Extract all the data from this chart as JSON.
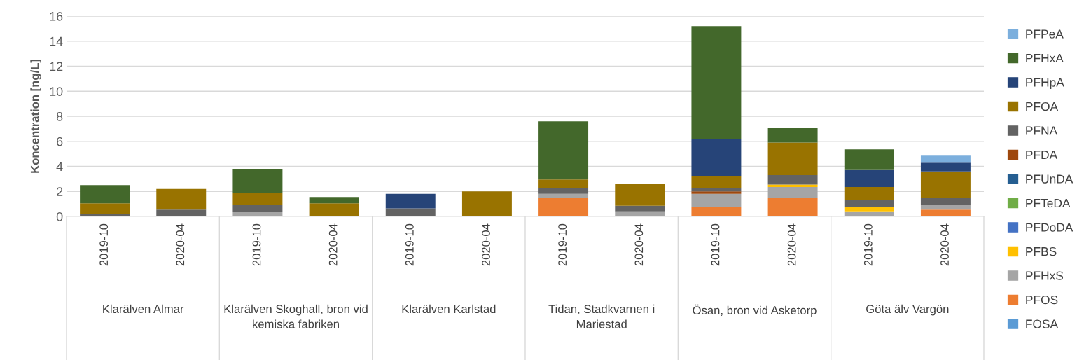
{
  "chart_data": {
    "type": "bar",
    "stacked": true,
    "ylabel": "Koncentration [ng/L]",
    "categories": [
      "2019-10",
      "2020-04",
      "2019-10",
      "2020-04",
      "2019-10",
      "2020-04",
      "2019-10",
      "2020-04",
      "2019-10",
      "2020-04",
      "2019-10",
      "2020-04"
    ],
    "annotations": [
      "Klarälven Almar",
      "Klarälven Skoghall, bron vid kemiska fabriken",
      "Klarälven Karlstad",
      "Tidan, Stadkvarnen i Mariestad",
      "Ösan, bron vid Asketorp",
      "Göta älv Vargön"
    ],
    "series": [
      {
        "name": "FOSA",
        "color": "#5b9bd5",
        "values": [
          null,
          null,
          null,
          null,
          null,
          null,
          null,
          null,
          null,
          null,
          null,
          null
        ]
      },
      {
        "name": "PFOS",
        "color": "#ed7d31",
        "values": [
          null,
          null,
          null,
          null,
          null,
          null,
          1.5,
          null,
          0.75,
          1.5,
          null,
          0.55
        ]
      },
      {
        "name": "PFHxS",
        "color": "#a5a5a5",
        "values": [
          null,
          null,
          0.35,
          null,
          null,
          null,
          0.3,
          0.4,
          1.05,
          0.85,
          0.4,
          0.35
        ]
      },
      {
        "name": "PFBS",
        "color": "#ffc000",
        "values": [
          null,
          null,
          null,
          null,
          null,
          null,
          null,
          null,
          null,
          0.2,
          0.35,
          null
        ]
      },
      {
        "name": "PFDoDA",
        "color": "#4472c4",
        "values": [
          null,
          null,
          null,
          null,
          null,
          null,
          null,
          null,
          null,
          null,
          null,
          null
        ]
      },
      {
        "name": "PFTeDA",
        "color": "#70ad47",
        "values": [
          null,
          null,
          null,
          null,
          null,
          null,
          null,
          null,
          null,
          null,
          null,
          null
        ]
      },
      {
        "name": "PFUnDA",
        "color": "#255e91",
        "values": [
          null,
          null,
          null,
          null,
          null,
          null,
          null,
          null,
          null,
          null,
          null,
          null
        ]
      },
      {
        "name": "PFDA",
        "color": "#9e480e",
        "values": [
          null,
          null,
          null,
          null,
          null,
          null,
          null,
          null,
          0.2,
          null,
          null,
          null
        ]
      },
      {
        "name": "PFNA",
        "color": "#636363",
        "values": [
          0.2,
          0.55,
          0.6,
          null,
          0.65,
          null,
          0.5,
          0.45,
          0.3,
          0.75,
          0.55,
          0.55
        ]
      },
      {
        "name": "PFOA",
        "color": "#997300",
        "values": [
          0.85,
          1.65,
          0.95,
          1.05,
          null,
          2.0,
          0.65,
          1.75,
          0.95,
          2.6,
          1.05,
          2.15
        ]
      },
      {
        "name": "PFHpA",
        "color": "#264478",
        "values": [
          null,
          null,
          null,
          null,
          1.15,
          null,
          null,
          null,
          2.95,
          null,
          1.35,
          0.7
        ]
      },
      {
        "name": "PFHxA",
        "color": "#43682b",
        "values": [
          1.45,
          null,
          1.85,
          0.5,
          null,
          null,
          4.65,
          null,
          9.0,
          1.15,
          1.65,
          null
        ]
      },
      {
        "name": "PFPeA",
        "color": "#7cafdd",
        "values": [
          null,
          null,
          null,
          null,
          null,
          null,
          null,
          null,
          null,
          null,
          null,
          0.55
        ]
      }
    ],
    "ylim": [
      0,
      16
    ],
    "yticks": [
      0,
      2,
      4,
      6,
      8,
      10,
      12,
      14,
      16
    ],
    "grid": "y",
    "legend": "right"
  }
}
